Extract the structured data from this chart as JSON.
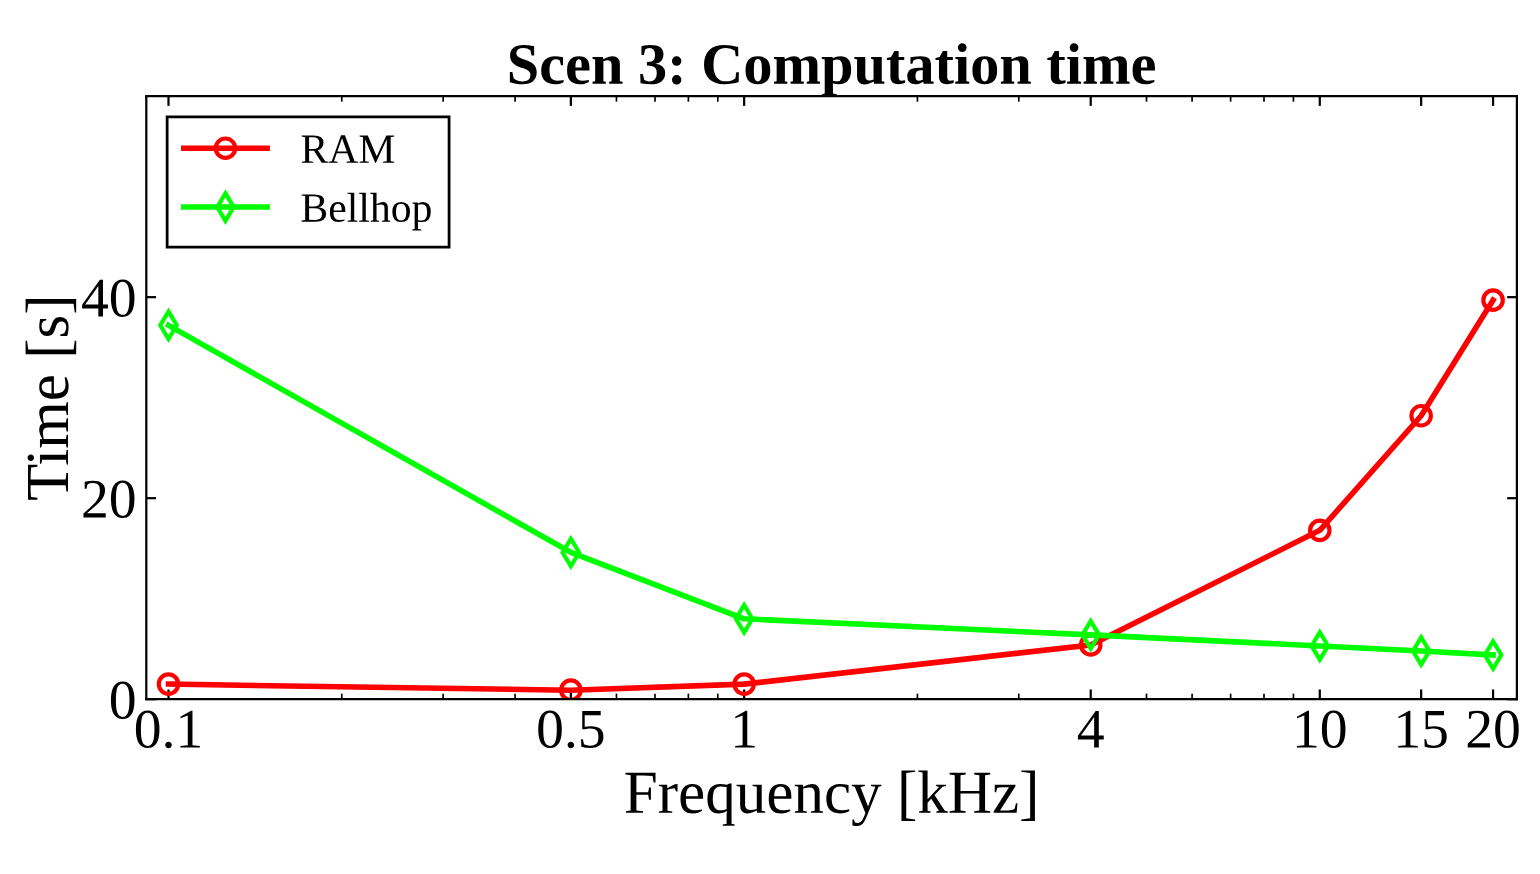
{
  "chart_data": {
    "type": "line",
    "title": "Scen 3: Computation time",
    "xlabel": "Frequency [kHz]",
    "ylabel": "Time [s]",
    "x": [
      0.1,
      0.5,
      1,
      4,
      10,
      15,
      20
    ],
    "series": [
      {
        "name": "RAM",
        "color": "#ff0000",
        "marker": "circle",
        "values": [
          1.5,
          0.9,
          1.5,
          5.4,
          16.8,
          28.2,
          39.7
        ]
      },
      {
        "name": "Bellhop",
        "color": "#00ff00",
        "marker": "diamond",
        "values": [
          37.2,
          14.6,
          8.0,
          6.4,
          5.3,
          4.8,
          4.4
        ]
      }
    ],
    "log": "x",
    "xlim": [
      0.0915,
      22
    ],
    "xticks": [
      0.1,
      0.5,
      1,
      4,
      10,
      15,
      20
    ],
    "ylim": [
      0,
      60
    ],
    "yticks": [
      0,
      20,
      40
    ],
    "grid": false,
    "legend": "top left",
    "line_style": "solid"
  }
}
